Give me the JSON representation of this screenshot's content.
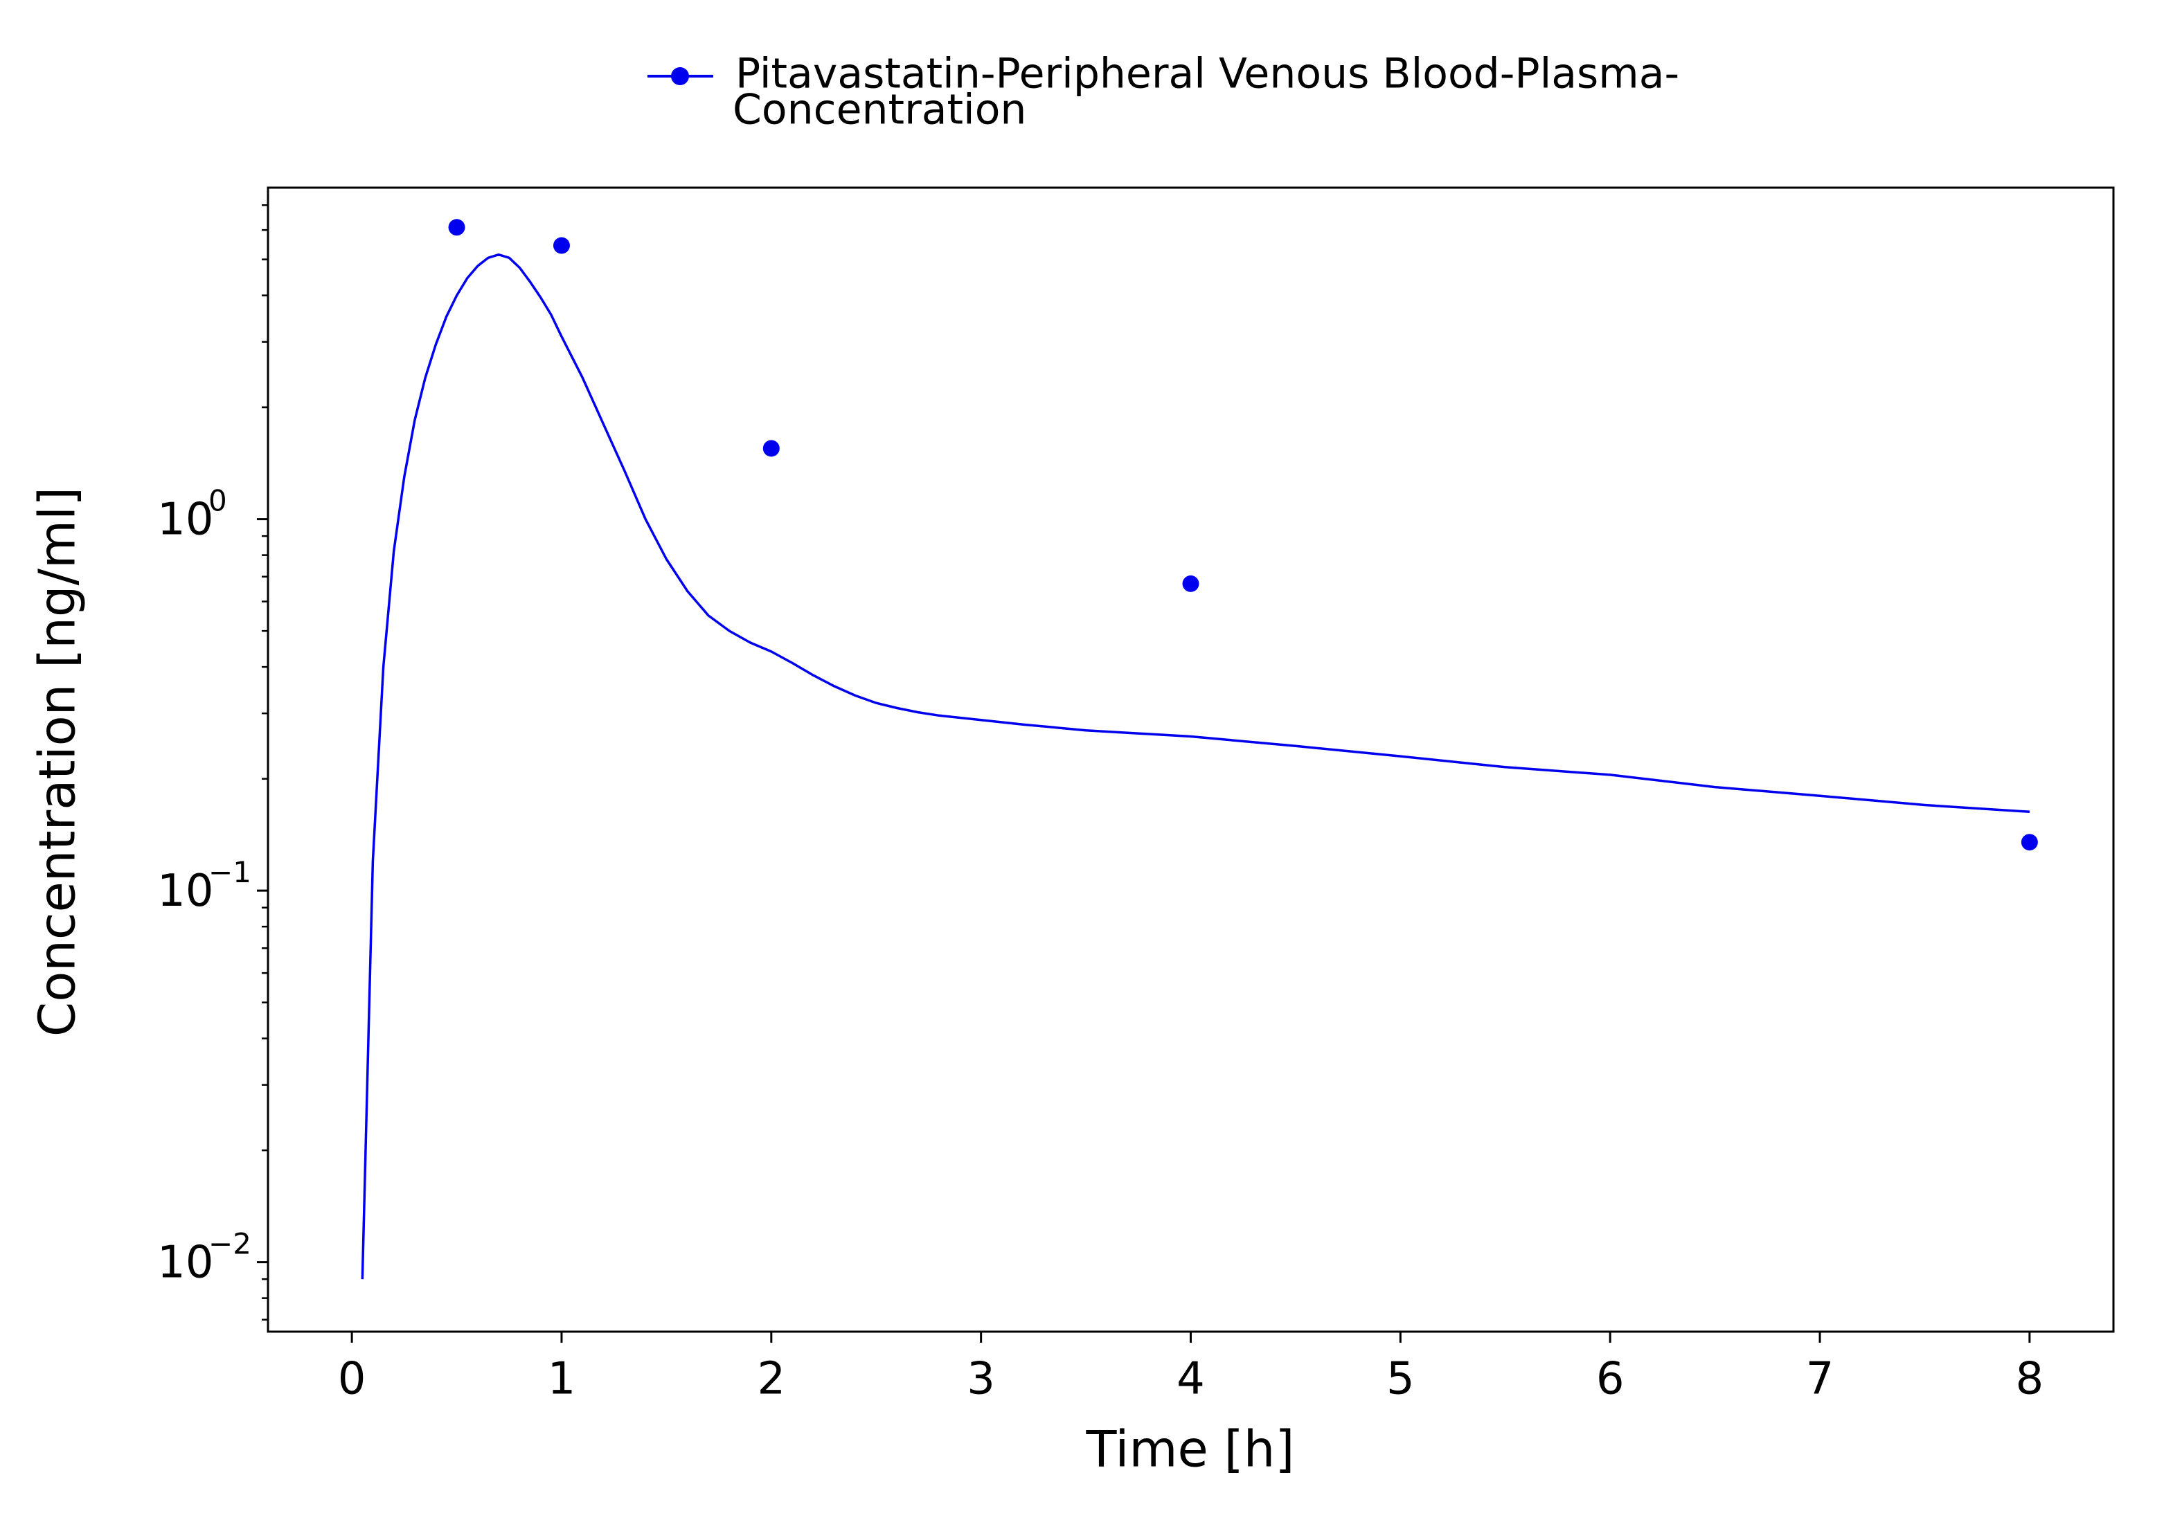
{
  "chart_data": {
    "type": "line",
    "xlabel": "Time [h]",
    "ylabel": "Concentration [ng/ml]",
    "y_scale": "log",
    "xlim": [
      -0.4,
      8.4
    ],
    "ylim": [
      0.0065,
      7.8
    ],
    "x_ticks": [
      {
        "value": 0,
        "label": "0"
      },
      {
        "value": 1,
        "label": "1"
      },
      {
        "value": 2,
        "label": "2"
      },
      {
        "value": 3,
        "label": "3"
      },
      {
        "value": 4,
        "label": "4"
      },
      {
        "value": 5,
        "label": "5"
      },
      {
        "value": 6,
        "label": "6"
      },
      {
        "value": 7,
        "label": "7"
      },
      {
        "value": 8,
        "label": "8"
      }
    ],
    "y_ticks": [
      {
        "value": 0.01,
        "base": "10",
        "exponent": "−2"
      },
      {
        "value": 0.1,
        "base": "10",
        "exponent": "−1"
      },
      {
        "value": 1,
        "base": "10",
        "exponent": "0"
      }
    ],
    "grid": false,
    "legend": {
      "position": "top-center",
      "lines": [
        "Pitavastatin-Peripheral Venous Blood-Plasma-",
        "Concentration"
      ]
    },
    "series": [
      {
        "name": "Pitavastatin-Peripheral Venous Blood-Plasma-Concentration",
        "kind": "line",
        "color": "#0000ee",
        "x": [
          0.05,
          0.1,
          0.15,
          0.2,
          0.25,
          0.3,
          0.35,
          0.4,
          0.45,
          0.5,
          0.55,
          0.6,
          0.65,
          0.7,
          0.75,
          0.8,
          0.85,
          0.9,
          0.95,
          1.0,
          1.1,
          1.2,
          1.3,
          1.4,
          1.5,
          1.6,
          1.7,
          1.8,
          1.9,
          2.0,
          2.1,
          2.2,
          2.3,
          2.4,
          2.5,
          2.6,
          2.7,
          2.8,
          3.0,
          3.2,
          3.5,
          4.0,
          4.5,
          5.0,
          5.5,
          6.0,
          6.5,
          7.0,
          7.5,
          8.0
        ],
        "y": [
          0.009,
          0.12,
          0.4,
          0.82,
          1.3,
          1.85,
          2.4,
          2.95,
          3.5,
          4.0,
          4.45,
          4.8,
          5.05,
          5.15,
          5.05,
          4.75,
          4.35,
          3.95,
          3.55,
          3.1,
          2.4,
          1.8,
          1.35,
          1.0,
          0.78,
          0.64,
          0.55,
          0.5,
          0.465,
          0.44,
          0.41,
          0.38,
          0.355,
          0.335,
          0.32,
          0.31,
          0.302,
          0.296,
          0.288,
          0.28,
          0.27,
          0.26,
          0.245,
          0.23,
          0.215,
          0.205,
          0.19,
          0.18,
          0.17,
          0.163
        ]
      },
      {
        "name": "Pitavastatin-Peripheral Venous Blood-Plasma-Concentration",
        "kind": "scatter",
        "color": "#0000ee",
        "x": [
          0.5,
          1.0,
          2.0,
          4.0,
          8.0
        ],
        "y": [
          6.1,
          5.45,
          1.55,
          0.67,
          0.135
        ]
      }
    ]
  }
}
